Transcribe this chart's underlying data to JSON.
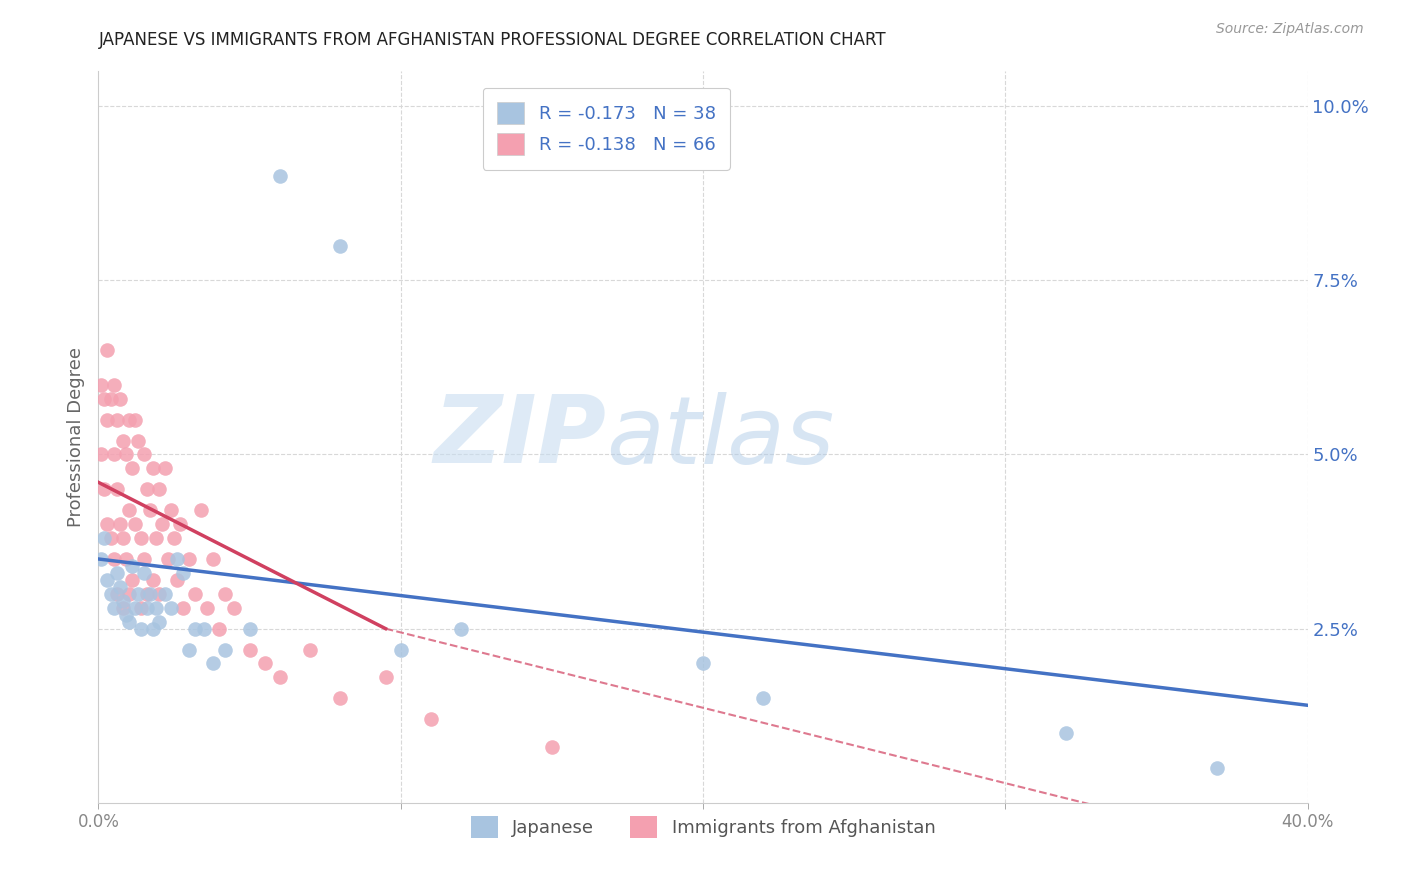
{
  "title": "JAPANESE VS IMMIGRANTS FROM AFGHANISTAN PROFESSIONAL DEGREE CORRELATION CHART",
  "source": "Source: ZipAtlas.com",
  "ylabel": "Professional Degree",
  "ylabel_right_values": [
    0.1,
    0.075,
    0.05,
    0.025
  ],
  "xlim": [
    0.0,
    0.4
  ],
  "ylim": [
    0.0,
    0.105
  ],
  "legend_label1": "R = -0.173   N = 38",
  "legend_label2": "R = -0.138   N = 66",
  "legend_label1_bottom": "Japanese",
  "legend_label2_bottom": "Immigrants from Afghanistan",
  "color_blue": "#a8c4e0",
  "color_pink": "#f4a0b0",
  "line_color_blue": "#4472c4",
  "line_color_pink": "#d04060",
  "watermark_zip": "ZIP",
  "watermark_atlas": "atlas",
  "japanese_x": [
    0.001,
    0.002,
    0.003,
    0.004,
    0.005,
    0.006,
    0.007,
    0.008,
    0.009,
    0.01,
    0.011,
    0.012,
    0.013,
    0.014,
    0.015,
    0.016,
    0.017,
    0.018,
    0.019,
    0.02,
    0.022,
    0.024,
    0.026,
    0.028,
    0.03,
    0.032,
    0.035,
    0.038,
    0.042,
    0.05,
    0.06,
    0.08,
    0.1,
    0.12,
    0.2,
    0.22,
    0.32,
    0.37
  ],
  "japanese_y": [
    0.035,
    0.038,
    0.032,
    0.03,
    0.028,
    0.033,
    0.031,
    0.029,
    0.027,
    0.026,
    0.034,
    0.028,
    0.03,
    0.025,
    0.033,
    0.028,
    0.03,
    0.025,
    0.028,
    0.026,
    0.03,
    0.028,
    0.035,
    0.033,
    0.022,
    0.025,
    0.025,
    0.02,
    0.022,
    0.025,
    0.09,
    0.08,
    0.022,
    0.025,
    0.02,
    0.015,
    0.01,
    0.005
  ],
  "afghanistan_x": [
    0.001,
    0.001,
    0.002,
    0.002,
    0.003,
    0.003,
    0.003,
    0.004,
    0.004,
    0.005,
    0.005,
    0.005,
    0.006,
    0.006,
    0.006,
    0.007,
    0.007,
    0.008,
    0.008,
    0.008,
    0.009,
    0.009,
    0.01,
    0.01,
    0.01,
    0.011,
    0.011,
    0.012,
    0.012,
    0.013,
    0.014,
    0.014,
    0.015,
    0.015,
    0.016,
    0.016,
    0.017,
    0.018,
    0.018,
    0.019,
    0.02,
    0.02,
    0.021,
    0.022,
    0.023,
    0.024,
    0.025,
    0.026,
    0.027,
    0.028,
    0.03,
    0.032,
    0.034,
    0.036,
    0.038,
    0.04,
    0.042,
    0.045,
    0.05,
    0.055,
    0.06,
    0.07,
    0.08,
    0.095,
    0.11,
    0.15
  ],
  "afghanistan_y": [
    0.06,
    0.05,
    0.058,
    0.045,
    0.065,
    0.055,
    0.04,
    0.058,
    0.038,
    0.06,
    0.05,
    0.035,
    0.055,
    0.045,
    0.03,
    0.058,
    0.04,
    0.052,
    0.038,
    0.028,
    0.05,
    0.035,
    0.055,
    0.042,
    0.03,
    0.048,
    0.032,
    0.055,
    0.04,
    0.052,
    0.038,
    0.028,
    0.05,
    0.035,
    0.045,
    0.03,
    0.042,
    0.048,
    0.032,
    0.038,
    0.045,
    0.03,
    0.04,
    0.048,
    0.035,
    0.042,
    0.038,
    0.032,
    0.04,
    0.028,
    0.035,
    0.03,
    0.042,
    0.028,
    0.035,
    0.025,
    0.03,
    0.028,
    0.022,
    0.02,
    0.018,
    0.022,
    0.015,
    0.018,
    0.012,
    0.008
  ]
}
